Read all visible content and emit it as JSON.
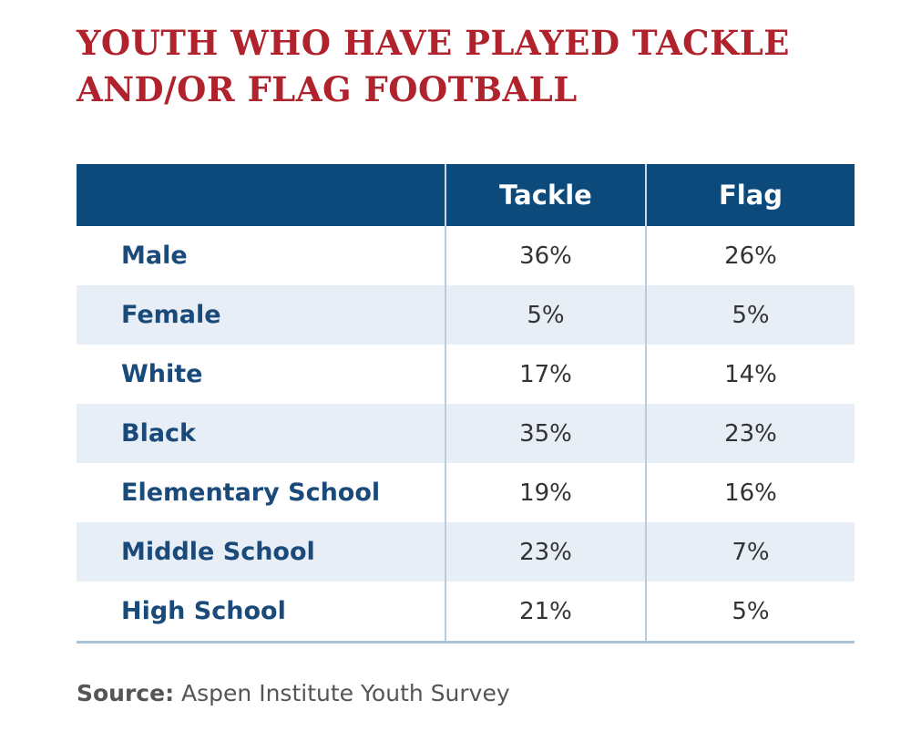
{
  "header": {
    "title_lines": [
      "YOUTH WHO HAVE PLAYED TACKLE",
      "AND/OR FLAG FOOTBALL"
    ]
  },
  "table": {
    "columns": [
      "Tackle",
      "Flag"
    ],
    "rows": [
      [
        "Male",
        "36%",
        "26%"
      ],
      [
        "Female",
        "5%",
        "5%"
      ],
      [
        "White",
        "17%",
        "14%"
      ],
      [
        "Black",
        "35%",
        "23%"
      ],
      [
        "Elementary School",
        "19%",
        "16%"
      ],
      [
        "Middle School",
        "23%",
        "7%"
      ],
      [
        "High School",
        "21%",
        "5%"
      ]
    ]
  },
  "source": {
    "label": "Source:",
    "text": "Aspen Institute Youth Survey"
  }
}
